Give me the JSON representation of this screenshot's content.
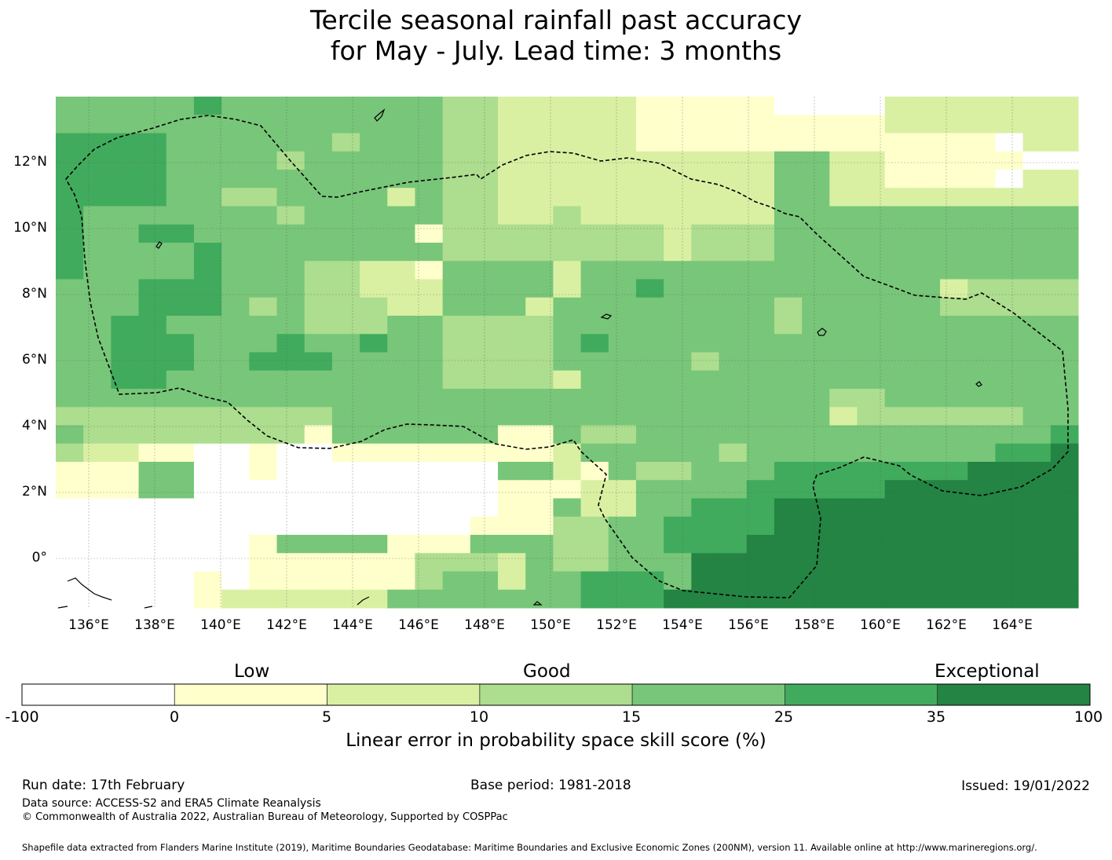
{
  "title": {
    "line1": "Tercile seasonal rainfall past accuracy",
    "line2": "for May - July. Lead time: 3 months"
  },
  "map": {
    "lat_labels": [
      "12°N",
      "10°N",
      "8°N",
      "6°N",
      "4°N",
      "2°N",
      "0°"
    ],
    "lon_labels": [
      "136°E",
      "138°E",
      "140°E",
      "142°E",
      "144°E",
      "146°E",
      "148°E",
      "150°E",
      "152°E",
      "154°E",
      "156°E",
      "158°E",
      "160°E",
      "162°E",
      "164°E"
    ],
    "lon_range": [
      135,
      166
    ],
    "lat_range": [
      -1.5,
      14
    ],
    "grid": true,
    "boundary": "dashed line (EEZ)"
  },
  "legend": {
    "categories": {
      "low": "Low",
      "good": "Good",
      "exceptional": "Exceptional"
    },
    "ticks": [
      "-100",
      "0",
      "5",
      "10",
      "15",
      "25",
      "35",
      "100"
    ],
    "colors": [
      "#ffffff",
      "#ffffcc",
      "#d9f0a3",
      "#addd8e",
      "#78c679",
      "#41ab5d",
      "#238443"
    ],
    "label": "Linear error in probability space skill score (%)"
  },
  "footer": {
    "run_date": "Run date: 17th February",
    "base_period": "Base period: 1981-2018",
    "issued": "Issued: 19/01/2022",
    "data_source": "Data source: ACCESS-S2 and ERA5 Climate Reanalysis",
    "copyright": "© Commonwealth of Australia 2022, Australian Bureau of Meteorology, Supported by COSPPac",
    "shapefile": "Shapefile data extracted from Flanders Marine Institute (2019), Maritime Boundaries Geodatabase: Maritime Boundaries and Exclusive Economic Zones (200NM), version 11. Available online at http://www.marineregions.org/."
  }
}
